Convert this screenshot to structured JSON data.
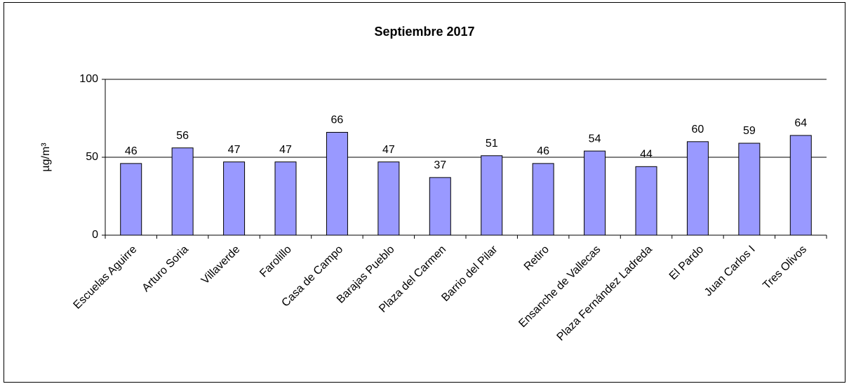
{
  "chart_data": {
    "type": "bar",
    "title": "Septiembre 2017",
    "y_label": "µg/m³",
    "categories": [
      "Escuelas Aguirre",
      "Arturo Soria",
      "Villaverde",
      "Farolillo",
      "Casa de Campo",
      "Barajas Pueblo",
      "Plaza del Carmen",
      "Barrio del Pilar",
      "Retiro",
      "Ensanche de Vallecas",
      "Plaza Fernández Ladreda",
      "El Pardo",
      "Juan Carlos I",
      "Tres Olivos"
    ],
    "values": [
      46,
      56,
      47,
      47,
      66,
      47,
      37,
      51,
      46,
      54,
      44,
      60,
      59,
      64
    ],
    "color": "#9999ff",
    "ylim": [
      0,
      100
    ],
    "yticks": [
      0,
      50,
      100
    ],
    "grid": true
  }
}
